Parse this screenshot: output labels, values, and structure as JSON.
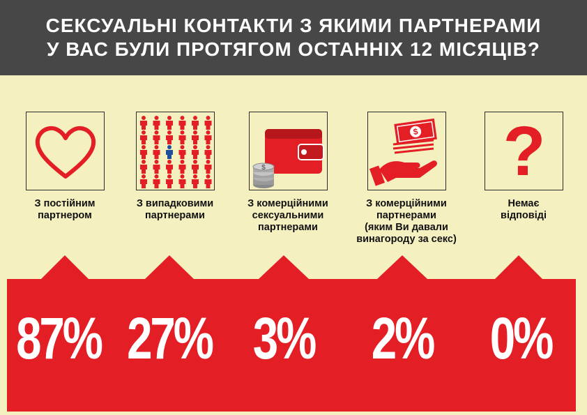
{
  "header": {
    "title_line1": "СЕКСУАЛЬНІ КОНТАКТИ З ЯКИМИ ПАРТНЕРАМИ",
    "title_line2": "У ВАС БУЛИ ПРОТЯГОМ ОСТАННІХ 12 МІСЯЦІВ?"
  },
  "colors": {
    "accent": "#e31e24",
    "header_bg": "#474747",
    "background": "#f5f0c0",
    "person_highlight": "#1f4e9c"
  },
  "categories": [
    {
      "icon": "heart-icon",
      "label_lines": [
        "З постійним",
        "партнером"
      ]
    },
    {
      "icon": "people-crowd-icon",
      "label_lines": [
        "З випадковими",
        "партнерами"
      ]
    },
    {
      "icon": "wallet-icon",
      "label_lines": [
        "З комерційними",
        "сексуальними",
        "партнерами"
      ]
    },
    {
      "icon": "money-hand-icon",
      "label_lines": [
        "З комерційними",
        "партнерами",
        "(яким Ви давали",
        "винагороду за секс)"
      ]
    },
    {
      "icon": "question-mark-icon",
      "label_lines": [
        "Немає",
        "відповіді"
      ]
    }
  ],
  "values_text": [
    "87%",
    "27%",
    "3%",
    "2%",
    "0%"
  ],
  "chart_data": {
    "type": "bar",
    "title": "СЕКСУАЛЬНІ КОНТАКТИ З ЯКИМИ ПАРТНЕРАМИ У ВАС БУЛИ ПРОТЯГОМ ОСТАННІХ 12 МІСЯЦІВ?",
    "categories": [
      "З постійним партнером",
      "З випадковими партнерами",
      "З комерційними сексуальними партнерами",
      "З комерційними партнерами (яким Ви давали винагороду за секс)",
      "Немає відповіді"
    ],
    "values": [
      87,
      27,
      3,
      2,
      0
    ],
    "unit": "%"
  }
}
